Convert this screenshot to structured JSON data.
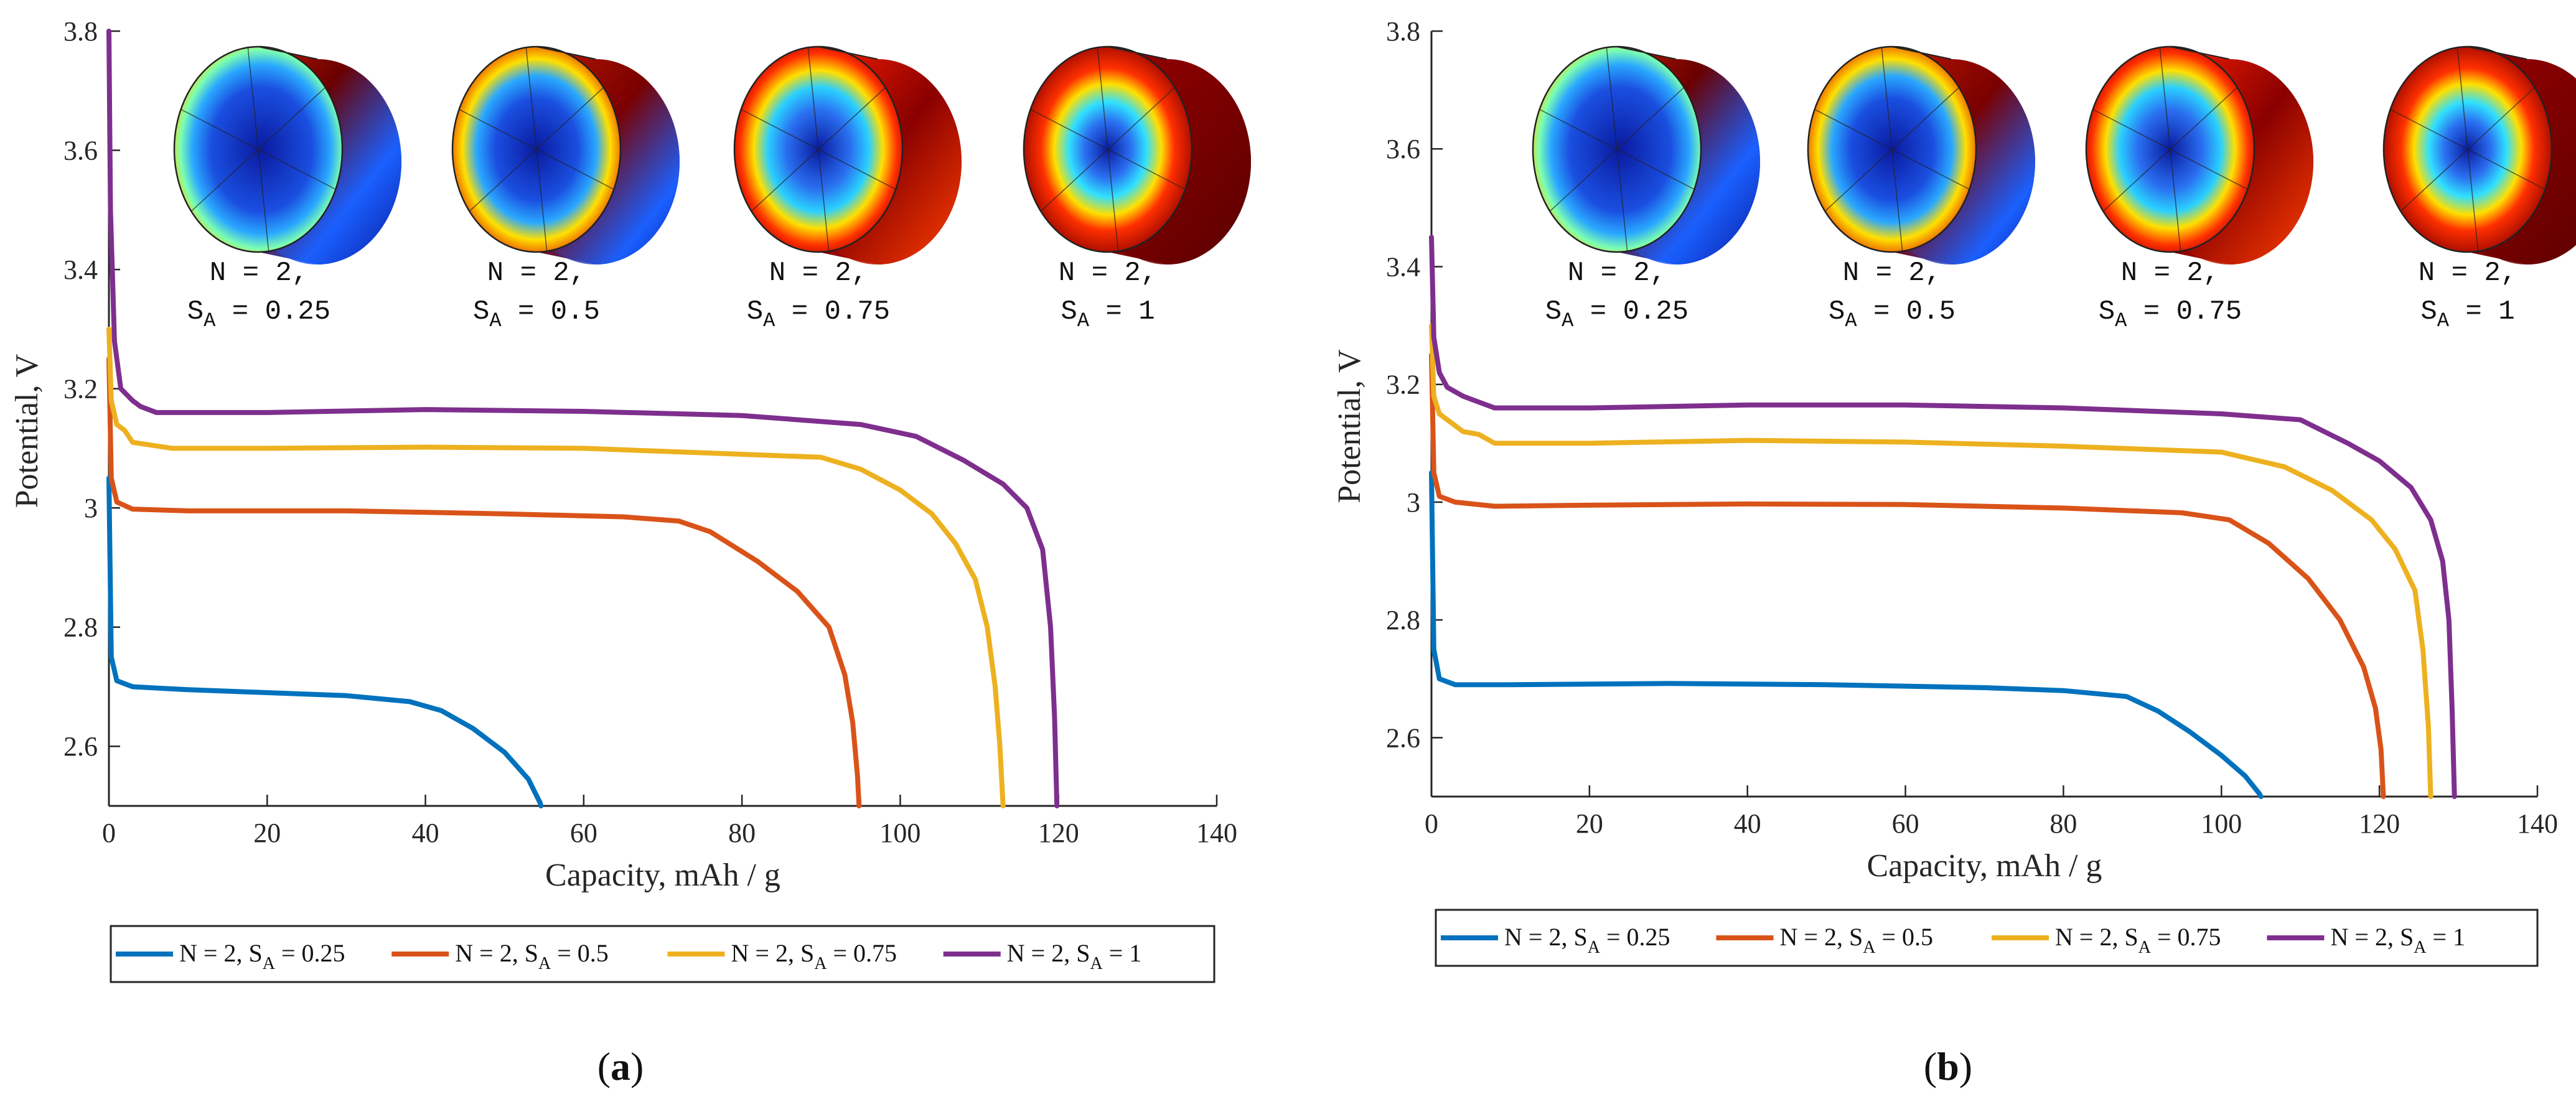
{
  "colors": {
    "blue": "#0072BD",
    "orange": "#D95319",
    "yellow": "#EDB120",
    "purple": "#7E2F8E"
  },
  "chart_data": [
    {
      "type": "line",
      "panel_label": "(a)",
      "xlabel": "Capacity, mAh / g",
      "ylabel": "Potential, V",
      "xlim": [
        0,
        140
      ],
      "ylim": [
        2.5,
        3.8
      ],
      "x_ticks": [
        "0",
        "20",
        "40",
        "60",
        "80",
        "100",
        "120",
        "140"
      ],
      "y_ticks": [
        "2.6",
        "2.8",
        "3",
        "3.2",
        "3.4",
        "3.6",
        "3.8"
      ],
      "legend_position": "bottom",
      "legend": [
        {
          "main": "N = 2, S",
          "sub": "A",
          "tail": " = 0.25"
        },
        {
          "main": "N = 2, S",
          "sub": "A",
          "tail": " = 0.5"
        },
        {
          "main": "N = 2, S",
          "sub": "A",
          "tail": " = 0.75"
        },
        {
          "main": "N = 2, S",
          "sub": "A",
          "tail": " = 1"
        }
      ],
      "annotations": [
        {
          "line1": "N = 2,",
          "main": "S",
          "sub": "A",
          "tail": " = 0.25"
        },
        {
          "line1": "N = 2,",
          "main": "S",
          "sub": "A",
          "tail": " = 0.5"
        },
        {
          "line1": "N = 2,",
          "main": "S",
          "sub": "A",
          "tail": " = 0.75"
        },
        {
          "line1": "N = 2,",
          "main": "S",
          "sub": "A",
          "tail": " = 1"
        }
      ],
      "series": [
        {
          "color": "blue",
          "points": [
            [
              0,
              3.05
            ],
            [
              0.3,
              2.75
            ],
            [
              1,
              2.71
            ],
            [
              3,
              2.7
            ],
            [
              10,
              2.695
            ],
            [
              20,
              2.69
            ],
            [
              30,
              2.685
            ],
            [
              38,
              2.675
            ],
            [
              42,
              2.66
            ],
            [
              46,
              2.63
            ],
            [
              50,
              2.59
            ],
            [
              53,
              2.545
            ],
            [
              54.5,
              2.505
            ],
            [
              54.6,
              2.5
            ]
          ]
        },
        {
          "color": "orange",
          "points": [
            [
              0,
              3.25
            ],
            [
              0.3,
              3.05
            ],
            [
              1,
              3.01
            ],
            [
              3,
              2.998
            ],
            [
              10,
              2.995
            ],
            [
              30,
              2.995
            ],
            [
              50,
              2.99
            ],
            [
              65,
              2.985
            ],
            [
              72,
              2.978
            ],
            [
              76,
              2.96
            ],
            [
              82,
              2.91
            ],
            [
              87,
              2.86
            ],
            [
              91,
              2.8
            ],
            [
              93,
              2.72
            ],
            [
              94,
              2.64
            ],
            [
              94.6,
              2.55
            ],
            [
              94.8,
              2.5
            ]
          ]
        },
        {
          "color": "yellow",
          "points": [
            [
              0,
              3.3
            ],
            [
              0.3,
              3.18
            ],
            [
              1,
              3.14
            ],
            [
              2,
              3.13
            ],
            [
              3,
              3.11
            ],
            [
              8,
              3.1
            ],
            [
              20,
              3.1
            ],
            [
              40,
              3.102
            ],
            [
              60,
              3.1
            ],
            [
              80,
              3.09
            ],
            [
              90,
              3.085
            ],
            [
              95,
              3.065
            ],
            [
              100,
              3.03
            ],
            [
              104,
              2.99
            ],
            [
              107,
              2.94
            ],
            [
              109.5,
              2.88
            ],
            [
              111,
              2.8
            ],
            [
              112,
              2.7
            ],
            [
              112.6,
              2.6
            ],
            [
              113,
              2.5
            ]
          ]
        },
        {
          "color": "purple",
          "points": [
            [
              0,
              3.8
            ],
            [
              0.2,
              3.5
            ],
            [
              0.7,
              3.28
            ],
            [
              1.5,
              3.2
            ],
            [
              3,
              3.18
            ],
            [
              4,
              3.17
            ],
            [
              6,
              3.16
            ],
            [
              20,
              3.16
            ],
            [
              40,
              3.165
            ],
            [
              60,
              3.162
            ],
            [
              80,
              3.155
            ],
            [
              95,
              3.14
            ],
            [
              102,
              3.12
            ],
            [
              108,
              3.08
            ],
            [
              113,
              3.04
            ],
            [
              116,
              3.0
            ],
            [
              118,
              2.93
            ],
            [
              119,
              2.8
            ],
            [
              119.5,
              2.65
            ],
            [
              119.8,
              2.5
            ]
          ]
        }
      ]
    },
    {
      "type": "line",
      "panel_label": "(b)",
      "xlabel": "Capacity, mAh / g",
      "ylabel": "Potential, V",
      "xlim": [
        0,
        140
      ],
      "ylim": [
        2.5,
        3.8
      ],
      "x_ticks": [
        "0",
        "20",
        "40",
        "60",
        "80",
        "100",
        "120",
        "140"
      ],
      "y_ticks": [
        "2.6",
        "2.8",
        "3",
        "3.2",
        "3.4",
        "3.6",
        "3.8"
      ],
      "legend_position": "bottom",
      "legend": [
        {
          "main": "N = 2, S",
          "sub": "A",
          "tail": " = 0.25"
        },
        {
          "main": "N = 2, S",
          "sub": "A",
          "tail": " = 0.5"
        },
        {
          "main": "N = 2, S",
          "sub": "A",
          "tail": " = 0.75"
        },
        {
          "main": "N = 2, S",
          "sub": "A",
          "tail": " = 1"
        }
      ],
      "annotations": [
        {
          "line1": "N = 2,",
          "main": "S",
          "sub": "A",
          "tail": " = 0.25"
        },
        {
          "line1": "N = 2,",
          "main": "S",
          "sub": "A",
          "tail": " = 0.5"
        },
        {
          "line1": "N = 2,",
          "main": "S",
          "sub": "A",
          "tail": " = 0.75"
        },
        {
          "line1": "N = 2,",
          "main": "S",
          "sub": "A",
          "tail": " = 1"
        }
      ],
      "series": [
        {
          "color": "blue",
          "points": [
            [
              0,
              3.05
            ],
            [
              0.3,
              2.75
            ],
            [
              1,
              2.7
            ],
            [
              3,
              2.69
            ],
            [
              10,
              2.69
            ],
            [
              30,
              2.692
            ],
            [
              50,
              2.69
            ],
            [
              70,
              2.685
            ],
            [
              80,
              2.68
            ],
            [
              88,
              2.67
            ],
            [
              92,
              2.645
            ],
            [
              96,
              2.61
            ],
            [
              100,
              2.57
            ],
            [
              103,
              2.535
            ],
            [
              104.8,
              2.505
            ],
            [
              105,
              2.5
            ]
          ]
        },
        {
          "color": "orange",
          "points": [
            [
              0,
              3.25
            ],
            [
              0.3,
              3.05
            ],
            [
              1,
              3.01
            ],
            [
              3,
              3.0
            ],
            [
              8,
              2.993
            ],
            [
              20,
              2.995
            ],
            [
              40,
              2.997
            ],
            [
              60,
              2.996
            ],
            [
              80,
              2.99
            ],
            [
              95,
              2.982
            ],
            [
              101,
              2.97
            ],
            [
              106,
              2.93
            ],
            [
              111,
              2.87
            ],
            [
              115,
              2.8
            ],
            [
              118,
              2.72
            ],
            [
              119.5,
              2.65
            ],
            [
              120.2,
              2.58
            ],
            [
              120.5,
              2.5
            ]
          ]
        },
        {
          "color": "yellow",
          "points": [
            [
              0,
              3.3
            ],
            [
              0.3,
              3.18
            ],
            [
              1,
              3.15
            ],
            [
              2,
              3.14
            ],
            [
              4,
              3.12
            ],
            [
              6,
              3.115
            ],
            [
              8,
              3.1
            ],
            [
              20,
              3.1
            ],
            [
              40,
              3.105
            ],
            [
              60,
              3.102
            ],
            [
              80,
              3.095
            ],
            [
              100,
              3.085
            ],
            [
              108,
              3.06
            ],
            [
              114,
              3.02
            ],
            [
              119,
              2.97
            ],
            [
              122,
              2.92
            ],
            [
              124.5,
              2.85
            ],
            [
              125.5,
              2.75
            ],
            [
              126.2,
              2.62
            ],
            [
              126.5,
              2.5
            ]
          ]
        },
        {
          "color": "purple",
          "points": [
            [
              0,
              3.45
            ],
            [
              0.3,
              3.28
            ],
            [
              1,
              3.22
            ],
            [
              2,
              3.195
            ],
            [
              4,
              3.18
            ],
            [
              6,
              3.17
            ],
            [
              8,
              3.16
            ],
            [
              20,
              3.16
            ],
            [
              40,
              3.165
            ],
            [
              60,
              3.165
            ],
            [
              80,
              3.16
            ],
            [
              100,
              3.15
            ],
            [
              110,
              3.14
            ],
            [
              116,
              3.1
            ],
            [
              120,
              3.07
            ],
            [
              124,
              3.025
            ],
            [
              126.5,
              2.97
            ],
            [
              128,
              2.9
            ],
            [
              128.8,
              2.8
            ],
            [
              129.2,
              2.65
            ],
            [
              129.5,
              2.5
            ]
          ]
        }
      ]
    }
  ]
}
